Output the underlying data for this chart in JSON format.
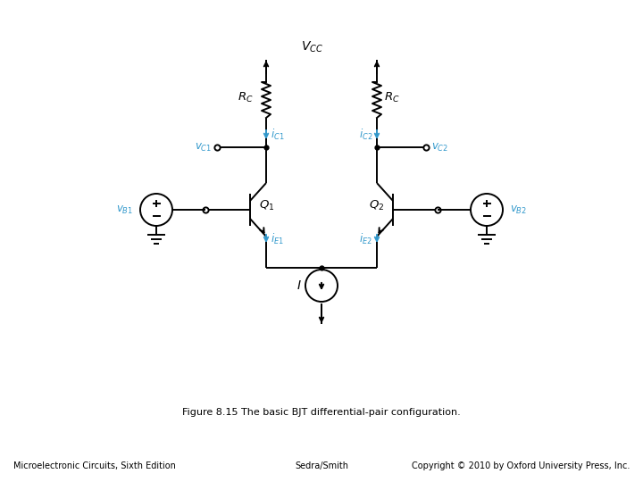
{
  "title": "Figure 8.15 The basic BJT differential-pair configuration.",
  "footer_left": "Microelectronic Circuits, Sixth Edition",
  "footer_center": "Sedra/Smith",
  "footer_right": "Copyright © 2010 by Oxford University Press, Inc.",
  "line_color": "#000000",
  "cyan_color": "#3399CC",
  "bg_color": "#ffffff",
  "vcc_label": "$V_{CC}$",
  "rc1_label": "$R_C$",
  "rc2_label": "$R_C$",
  "q1_label": "$Q_1$",
  "q2_label": "$Q_2$",
  "i_label": "$I$",
  "vb1_label": "$v_{B1}$",
  "vb2_label": "$v_{B2}$",
  "vc1_label": "$v_{C1}$",
  "vc2_label": "$v_{C2}$",
  "ic1_label": "$i_{C1}$",
  "ic2_label": "$i_{C2}$",
  "ie1_label": "$i_{E1}$",
  "ie2_label": "$i_{E2}$"
}
